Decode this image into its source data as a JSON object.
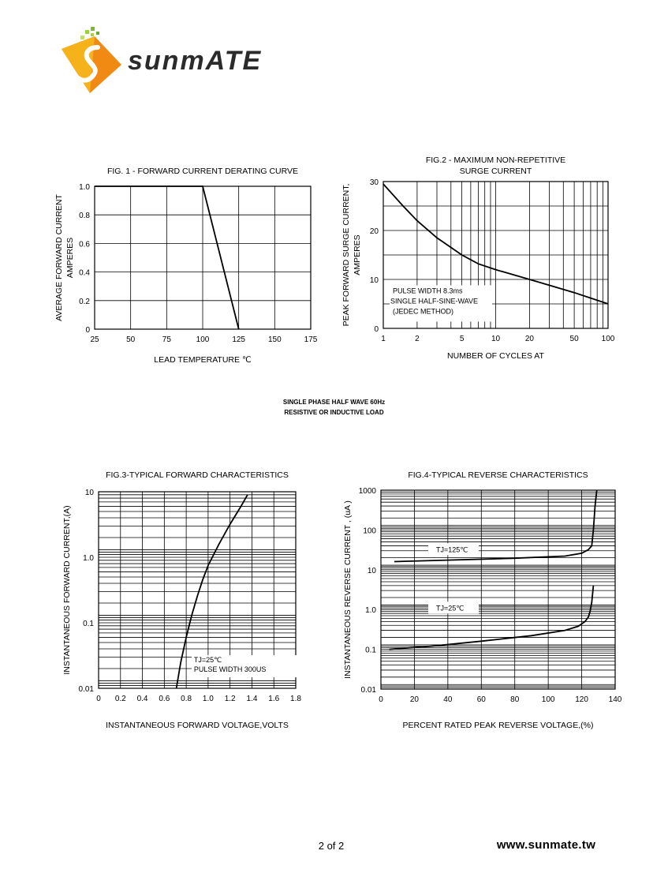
{
  "brand": {
    "logo_text": "sunmATE",
    "website": "www.sunmate.tw",
    "colors": {
      "orange": "#f08a12",
      "gold": "#f6b21a",
      "dark": "#2b2b2b"
    }
  },
  "page": {
    "number_text": "2 of 2"
  },
  "notes": {
    "line1": "SINGLE PHASE HALF WAVE 60Hz",
    "line2": "RESISTIVE OR INDUCTIVE LOAD"
  },
  "chart_data": [
    {
      "id": "fig1",
      "type": "line",
      "title": "FIG. 1 - FORWARD  CURRENT  DERATING  CURVE",
      "xlabel": "LEAD TEMPERATURE  ℃",
      "ylabel": [
        "AVERAGE FORWARD CURRENT",
        "AMPERES"
      ],
      "xlim": [
        25,
        175
      ],
      "ylim": [
        0,
        1.0
      ],
      "x_ticks": [
        25,
        50,
        75,
        100,
        125,
        150,
        175
      ],
      "x_tick_labels": [
        "25",
        "50",
        "75",
        "100",
        "125",
        "150",
        "175"
      ],
      "y_ticks": [
        0,
        0.2,
        0.4,
        0.6,
        0.8,
        1.0
      ],
      "y_tick_labels": [
        "0",
        "0.2",
        "0.4",
        "0.6",
        "0.8",
        "1.0"
      ],
      "grid": true,
      "series": [
        {
          "x": [
            25,
            100,
            125
          ],
          "y": [
            1.0,
            1.0,
            0
          ]
        }
      ]
    },
    {
      "id": "fig2",
      "type": "line",
      "title": [
        "FIG.2 - MAXIMUM  NON-REPETITIVE",
        "SURGE  CURRENT"
      ],
      "xlabel": "NUMBER OF CYCLES AT",
      "ylabel": [
        "PEAK FORWARD SURGE CURRENT,",
        "AMPERES"
      ],
      "x_scale": "log",
      "xlim": [
        1,
        100
      ],
      "ylim": [
        0,
        30
      ],
      "x_ticks": [
        1,
        2,
        5,
        10,
        20,
        50,
        100
      ],
      "x_tick_labels": [
        "1",
        "2",
        "5",
        "10",
        "20",
        "50",
        "100"
      ],
      "y_ticks": [
        0,
        10,
        20,
        30
      ],
      "y_tick_labels": [
        "0",
        "10",
        "20",
        "30"
      ],
      "grid": true,
      "annotations": [
        "PULSE WIDTH 8.3ms",
        "SINGLE HALF-SINE-WAVE",
        "(JEDEC METHOD)"
      ],
      "series": [
        {
          "x": [
            1,
            1.5,
            2,
            3,
            5,
            7,
            10,
            20,
            30,
            50,
            70,
            100
          ],
          "y": [
            29.5,
            25,
            22,
            18.5,
            15,
            13.2,
            12,
            10,
            8.8,
            7.3,
            6.2,
            5
          ]
        }
      ]
    },
    {
      "id": "fig3",
      "type": "line",
      "title": "FIG.3-TYPICAL FORWARD CHARACTERISTICS",
      "xlabel": "INSTANTANEOUS FORWARD VOLTAGE,VOLTS",
      "ylabel": "INSTANTANEOUS FORWARD  CURRENT,(A)",
      "y_scale": "log",
      "xlim": [
        0,
        1.8
      ],
      "ylim": [
        0.01,
        10
      ],
      "x_ticks": [
        0,
        0.2,
        0.4,
        0.6,
        0.8,
        1.0,
        1.2,
        1.4,
        1.6,
        1.8
      ],
      "x_tick_labels": [
        "0",
        "0.2",
        "0.4",
        "0.6",
        "0.8",
        "1.0",
        "1.2",
        "1.4",
        "1.6",
        "1.8"
      ],
      "y_ticks": [
        0.01,
        0.1,
        1.0,
        10
      ],
      "y_tick_labels": [
        "0.01",
        "0.1",
        "1.0",
        "10"
      ],
      "grid": true,
      "annotations": [
        "TJ=25℃",
        "PULSE WIDTH 300US"
      ],
      "series": [
        {
          "x": [
            0.71,
            0.75,
            0.8,
            0.85,
            0.9,
            0.95,
            1.0,
            1.1,
            1.2,
            1.3,
            1.36
          ],
          "y": [
            0.01,
            0.025,
            0.06,
            0.13,
            0.25,
            0.45,
            0.75,
            1.6,
            3.2,
            6,
            9
          ]
        }
      ]
    },
    {
      "id": "fig4",
      "type": "line",
      "title": "FIG.4-TYPICAL REVERSE CHARACTERISTICS",
      "xlabel": "PERCENT RATED PEAK REVERSE VOLTAGE,(%)",
      "ylabel": "INSTANTANEOUS REVERSE CURRENT , (uA )",
      "y_scale": "log",
      "xlim": [
        0,
        140
      ],
      "ylim": [
        0.01,
        1000
      ],
      "x_ticks": [
        0,
        20,
        40,
        60,
        80,
        100,
        120,
        140
      ],
      "x_tick_labels": [
        "0",
        "20",
        "40",
        "60",
        "80",
        "100",
        "120",
        "140"
      ],
      "y_ticks": [
        0.01,
        0.1,
        1.0,
        10,
        100,
        1000
      ],
      "y_tick_labels": [
        "0.01",
        "0.1",
        "1.0",
        "10",
        "100",
        "1000"
      ],
      "grid": true,
      "annotations": [
        "TJ=125℃",
        "TJ=25℃"
      ],
      "series": [
        {
          "name": "TJ=125℃",
          "x": [
            8,
            40,
            80,
            110,
            120,
            124,
            126,
            127,
            128,
            129
          ],
          "y": [
            16,
            17.5,
            19.5,
            22,
            26,
            32,
            40,
            100,
            400,
            1000
          ]
        },
        {
          "name": "TJ=25℃",
          "x": [
            5,
            30,
            60,
            90,
            110,
            118,
            122,
            124,
            125,
            126,
            127
          ],
          "y": [
            0.1,
            0.12,
            0.16,
            0.22,
            0.3,
            0.38,
            0.5,
            0.65,
            0.9,
            1.5,
            4
          ]
        }
      ]
    }
  ]
}
